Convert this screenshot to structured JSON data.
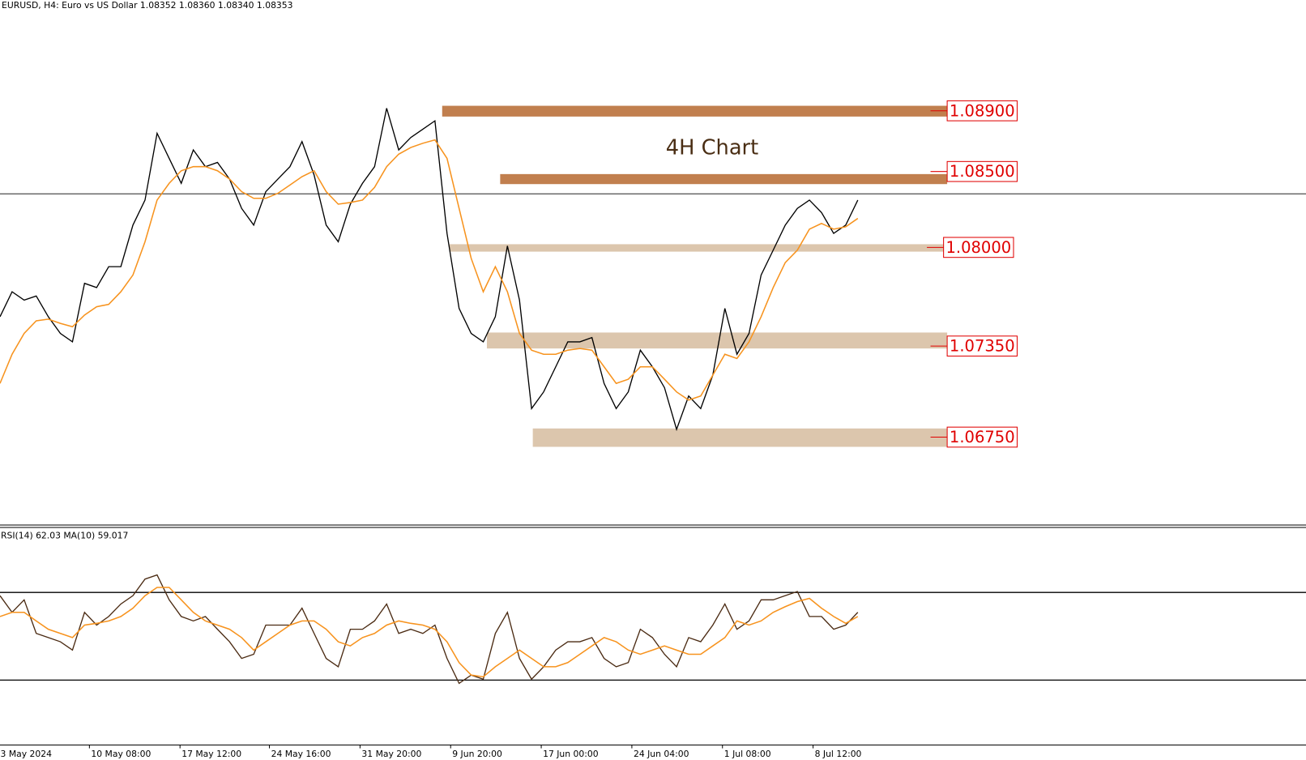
{
  "chart_data": [
    {
      "type": "line",
      "title": "EURUSD, H4:  Euro vs US Dollar  1.08352 1.08360 1.08340 1.08353",
      "annotation": "4H Chart",
      "xlim": [
        0,
        108.1
      ],
      "ylim": [
        1.0616,
        1.0963
      ],
      "last_price": 1.08353,
      "series": [
        {
          "color": "#000000",
          "values": [
            1.07543,
            1.07708,
            1.07653,
            1.0768,
            1.07543,
            1.07433,
            1.07378,
            1.07763,
            1.07735,
            1.07873,
            1.07873,
            1.08147,
            1.08312,
            1.08752,
            1.08587,
            1.08422,
            1.08642,
            1.08532,
            1.0856,
            1.0845,
            1.08257,
            1.08147,
            1.08367,
            1.0845,
            1.08532,
            1.08697,
            1.08477,
            1.08147,
            1.08037,
            1.08285,
            1.08422,
            1.08532,
            1.08917,
            1.08642,
            1.08724,
            1.08779,
            1.08834,
            1.08092,
            1.07598,
            1.07433,
            1.07378,
            1.07543,
            1.0801,
            1.07653,
            1.06938,
            1.07048,
            1.07213,
            1.07378,
            1.07378,
            1.07406,
            1.07103,
            1.06938,
            1.07048,
            1.07323,
            1.07213,
            1.07076,
            1.06801,
            1.07021,
            1.06938,
            1.07158,
            1.07598,
            1.07296,
            1.07433,
            1.07818,
            1.07982,
            1.08147,
            1.08257,
            1.08312,
            1.0823,
            1.08092,
            1.08147,
            1.08312
          ]
        },
        {
          "color": "#f7931e",
          "values": [
            1.07104,
            1.07296,
            1.07433,
            1.07516,
            1.07527,
            1.07499,
            1.07477,
            1.07554,
            1.07609,
            1.07625,
            1.07708,
            1.07818,
            1.08037,
            1.08312,
            1.08422,
            1.08505,
            1.08532,
            1.08532,
            1.08505,
            1.0845,
            1.08367,
            1.08323,
            1.08323,
            1.08356,
            1.08411,
            1.08466,
            1.08505,
            1.08367,
            1.08285,
            1.08296,
            1.08312,
            1.08395,
            1.08532,
            1.08614,
            1.08658,
            1.08686,
            1.08708,
            1.08587,
            1.08257,
            1.07928,
            1.07708,
            1.07873,
            1.07708,
            1.07433,
            1.07323,
            1.07296,
            1.07296,
            1.07323,
            1.07334,
            1.07323,
            1.07213,
            1.07104,
            1.07131,
            1.07213,
            1.07213,
            1.07131,
            1.07048,
            1.06994,
            1.07021,
            1.07158,
            1.07296,
            1.07268,
            1.07378,
            1.07543,
            1.07735,
            1.079,
            1.07982,
            1.0812,
            1.08158,
            1.0812,
            1.08136,
            1.08191
          ]
        }
      ],
      "zones": [
        {
          "value": 1.089,
          "label": "1.08900",
          "band": [
            1.08862,
            1.08933
          ],
          "x": [
            36.6,
            78.4
          ],
          "color": "#c17f4e"
        },
        {
          "value": 1.085,
          "label": "1.08500",
          "band": [
            1.08417,
            1.08483
          ],
          "x": [
            41.4,
            78.4
          ],
          "color": "#c17f4e"
        },
        {
          "value": 1.08,
          "label": "1.08000",
          "band": [
            1.07972,
            1.08021
          ],
          "x": [
            37.2,
            78.1
          ],
          "color": "#dcc6ad"
        },
        {
          "value": 1.0735,
          "label": "1.07350",
          "band": [
            1.07334,
            1.07439
          ],
          "x": [
            40.3,
            78.4
          ],
          "color": "#dcc6ad"
        },
        {
          "value": 1.0675,
          "label": "1.06750",
          "band": [
            1.06686,
            1.06807
          ],
          "x": [
            44.1,
            78.4
          ],
          "color": "#dcc6ad"
        }
      ]
    },
    {
      "type": "line",
      "title": "RSI(14) 62.03 MA(10) 59.017",
      "xlim": [
        0,
        108.1
      ],
      "ylim": [
        0,
        100
      ],
      "levels": [
        30,
        70
      ],
      "series": [
        {
          "color": "#4a2a12",
          "values": [
            68.5,
            60.9,
            66.6,
            51.3,
            49.4,
            47.5,
            43.7,
            60.9,
            55.1,
            59.0,
            64.7,
            68.5,
            76.1,
            78.0,
            66.6,
            59.0,
            57.0,
            59.0,
            53.2,
            47.5,
            39.9,
            41.8,
            55.1,
            55.1,
            55.1,
            62.8,
            51.3,
            39.9,
            36.1,
            53.2,
            53.2,
            57.0,
            64.7,
            51.3,
            53.2,
            51.3,
            55.1,
            39.9,
            28.5,
            32.3,
            30.4,
            51.3,
            60.9,
            39.9,
            30.4,
            36.1,
            43.7,
            47.5,
            47.5,
            49.4,
            39.9,
            36.1,
            38.0,
            53.2,
            49.4,
            41.8,
            36.1,
            49.4,
            47.5,
            55.1,
            64.7,
            53.2,
            57.0,
            66.6,
            66.6,
            68.5,
            70.4,
            59.0,
            59.0,
            53.2,
            55.1,
            60.9
          ]
        },
        {
          "color": "#f7931e",
          "values": [
            59.0,
            60.9,
            60.9,
            57.0,
            53.2,
            51.3,
            49.4,
            55.1,
            55.9,
            57.0,
            59.0,
            62.8,
            68.5,
            72.3,
            72.3,
            66.6,
            60.9,
            57.0,
            55.1,
            53.2,
            49.4,
            43.7,
            47.5,
            51.3,
            55.1,
            57.0,
            57.0,
            53.2,
            47.5,
            45.6,
            49.4,
            51.3,
            55.1,
            57.0,
            55.9,
            55.1,
            53.2,
            47.5,
            38.0,
            32.3,
            31.5,
            36.1,
            39.9,
            43.7,
            39.9,
            36.1,
            36.1,
            38.0,
            41.8,
            45.6,
            49.4,
            47.5,
            43.7,
            41.8,
            43.7,
            45.6,
            43.7,
            41.8,
            41.8,
            45.6,
            49.4,
            57.0,
            55.1,
            57.0,
            60.9,
            63.5,
            65.8,
            67.3,
            62.8,
            59.0,
            55.9,
            59.0
          ]
        }
      ],
      "xticks": [
        {
          "value": -0.1,
          "label": "3 May 2024"
        },
        {
          "value": 7.4,
          "label": "10 May 08:00"
        },
        {
          "value": 14.9,
          "label": "17 May 12:00"
        },
        {
          "value": 22.3,
          "label": "24 May 16:00"
        },
        {
          "value": 29.8,
          "label": "31 May 20:00"
        },
        {
          "value": 37.3,
          "label": "9 Jun 20:00"
        },
        {
          "value": 44.8,
          "label": "17 Jun 00:00"
        },
        {
          "value": 52.3,
          "label": "24 Jun 04:00"
        },
        {
          "value": 59.8,
          "label": "1 Jul 08:00"
        },
        {
          "value": 67.3,
          "label": "8 Jul 12:00"
        }
      ]
    }
  ]
}
